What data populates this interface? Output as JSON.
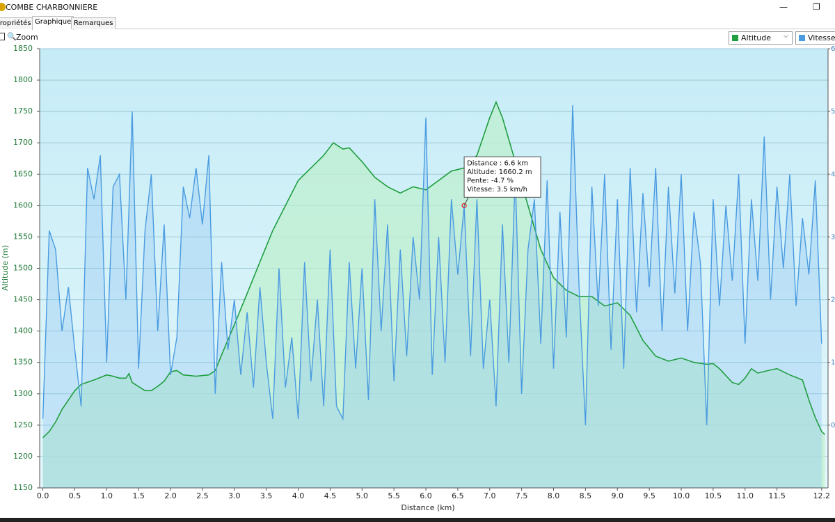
{
  "window": {
    "title": "COMBE  CHARBONNIERE"
  },
  "tabs": [
    "Propriétés",
    "Graphique",
    "Remarques"
  ],
  "toolbar": {
    "zoom": "Zoom"
  },
  "chart_data": {
    "type": "line",
    "xlabel": "Distance   (km)",
    "ylabel": "Altitude (m)",
    "xlim": [
      -0.05,
      12.3
    ],
    "ylim": [
      1150,
      1850
    ],
    "y2lim": [
      -1,
      6
    ],
    "grid": true,
    "xticks": [
      {
        "value": 0,
        "label": "0.0"
      },
      0.5,
      {
        "value": 1,
        "label": "1.0"
      },
      1.5,
      {
        "value": 2,
        "label": "2.0"
      },
      2.5,
      {
        "value": 3,
        "label": "3.0"
      },
      3.5,
      {
        "value": 4,
        "label": "4.0"
      },
      4.5,
      {
        "value": 5,
        "label": "5.0"
      },
      5.5,
      {
        "value": 6,
        "label": "6.0"
      },
      6.5,
      {
        "value": 7,
        "label": "7.0"
      },
      7.5,
      {
        "value": 8,
        "label": "8.0"
      },
      8.5,
      {
        "value": 9,
        "label": "9.0"
      },
      9.5,
      {
        "value": 10,
        "label": "10.0"
      },
      10.5,
      {
        "value": 11,
        "label": "11.0"
      },
      11.5,
      12.2
    ],
    "yticks": [
      1150,
      1200,
      1250,
      1300,
      1350,
      1400,
      1450,
      1500,
      1550,
      1600,
      1650,
      1700,
      1750,
      1800,
      1850
    ],
    "y2ticks": [
      0,
      1,
      2,
      3,
      4,
      5,
      6
    ],
    "series": [
      {
        "name": "Altitude",
        "color": "#1f9e3f",
        "x": [
          0,
          0.1,
          0.2,
          0.3,
          0.4,
          0.5,
          0.6,
          0.8,
          1.0,
          1.1,
          1.2,
          1.3,
          1.35,
          1.4,
          1.6,
          1.7,
          1.8,
          1.9,
          2.0,
          2.1,
          2.2,
          2.4,
          2.6,
          2.7,
          2.8,
          3.0,
          3.2,
          3.4,
          3.6,
          3.8,
          4.0,
          4.2,
          4.4,
          4.55,
          4.7,
          4.8,
          5.0,
          5.2,
          5.4,
          5.6,
          5.8,
          6.0,
          6.2,
          6.4,
          6.6,
          6.8,
          7.0,
          7.1,
          7.2,
          7.4,
          7.6,
          7.8,
          8.0,
          8.2,
          8.4,
          8.6,
          8.8,
          9.0,
          9.2,
          9.4,
          9.6,
          9.8,
          10.0,
          10.2,
          10.4,
          10.5,
          10.6,
          10.8,
          10.9,
          11.0,
          11.1,
          11.2,
          11.4,
          11.5,
          11.7,
          11.9,
          12.0,
          12.1,
          12.2,
          12.25
        ],
        "values": [
          1230,
          1240,
          1255,
          1275,
          1290,
          1305,
          1315,
          1322,
          1330,
          1328,
          1325,
          1325,
          1332,
          1318,
          1305,
          1305,
          1312,
          1320,
          1335,
          1337,
          1330,
          1328,
          1330,
          1337,
          1362,
          1410,
          1460,
          1510,
          1560,
          1600,
          1640,
          1660,
          1680,
          1700,
          1690,
          1692,
          1670,
          1645,
          1630,
          1620,
          1630,
          1625,
          1640,
          1655,
          1660,
          1680,
          1740,
          1765,
          1740,
          1670,
          1600,
          1530,
          1485,
          1465,
          1455,
          1455,
          1440,
          1445,
          1425,
          1385,
          1360,
          1352,
          1357,
          1350,
          1347,
          1348,
          1340,
          1318,
          1315,
          1325,
          1340,
          1333,
          1338,
          1340,
          1330,
          1322,
          1290,
          1262,
          1240,
          1235
        ]
      },
      {
        "name": "Vitesse",
        "color": "#4a9be0",
        "axis": "y2",
        "x": [
          0,
          0.1,
          0.2,
          0.3,
          0.4,
          0.5,
          0.6,
          0.7,
          0.8,
          0.9,
          1.0,
          1.1,
          1.2,
          1.3,
          1.4,
          1.5,
          1.6,
          1.7,
          1.8,
          1.9,
          2.0,
          2.1,
          2.2,
          2.3,
          2.4,
          2.5,
          2.6,
          2.7,
          2.8,
          2.9,
          3.0,
          3.1,
          3.2,
          3.3,
          3.4,
          3.5,
          3.6,
          3.7,
          3.8,
          3.9,
          4.0,
          4.1,
          4.2,
          4.3,
          4.4,
          4.5,
          4.6,
          4.7,
          4.8,
          4.9,
          5.0,
          5.1,
          5.2,
          5.3,
          5.4,
          5.5,
          5.6,
          5.7,
          5.8,
          5.9,
          6.0,
          6.1,
          6.2,
          6.3,
          6.4,
          6.5,
          6.6,
          6.7,
          6.8,
          6.9,
          7.0,
          7.1,
          7.2,
          7.3,
          7.4,
          7.5,
          7.6,
          7.7,
          7.8,
          7.9,
          8.0,
          8.1,
          8.2,
          8.3,
          8.4,
          8.5,
          8.6,
          8.7,
          8.8,
          8.9,
          9.0,
          9.1,
          9.2,
          9.3,
          9.4,
          9.5,
          9.6,
          9.7,
          9.8,
          9.9,
          10.0,
          10.1,
          10.2,
          10.3,
          10.4,
          10.5,
          10.6,
          10.7,
          10.8,
          10.9,
          11.0,
          11.1,
          11.2,
          11.3,
          11.4,
          11.5,
          11.6,
          11.7,
          11.8,
          11.9,
          12.0,
          12.1,
          12.2
        ],
        "values": [
          0.1,
          3.1,
          2.8,
          1.5,
          2.2,
          1.2,
          0.3,
          4.1,
          3.6,
          4.3,
          1.0,
          3.8,
          4.0,
          2.0,
          5.0,
          0.9,
          3.1,
          4.0,
          1.5,
          3.2,
          0.8,
          1.4,
          3.8,
          3.3,
          4.1,
          3.2,
          4.3,
          0.5,
          2.6,
          1.2,
          2.0,
          0.8,
          1.8,
          0.6,
          2.2,
          1.0,
          0.1,
          2.5,
          0.6,
          1.4,
          0.1,
          2.6,
          0.7,
          2.0,
          0.3,
          2.8,
          0.3,
          0.1,
          2.6,
          0.9,
          2.5,
          0.4,
          3.6,
          1.5,
          3.2,
          0.7,
          2.8,
          1.1,
          3.0,
          2.0,
          4.9,
          0.8,
          3.0,
          1.0,
          3.6,
          2.4,
          3.5,
          1.1,
          3.6,
          0.9,
          2.0,
          0.3,
          3.2,
          1.0,
          4.0,
          0.5,
          2.8,
          3.6,
          1.3,
          3.9,
          0.9,
          3.4,
          1.4,
          5.1,
          2.2,
          0.0,
          3.8,
          1.9,
          4.0,
          1.2,
          3.6,
          0.9,
          4.1,
          1.8,
          3.7,
          2.2,
          4.1,
          1.5,
          3.8,
          2.1,
          4.0,
          1.5,
          3.4,
          2.6,
          0.0,
          3.6,
          1.9,
          3.5,
          2.3,
          4.0,
          1.3,
          3.6,
          2.3,
          4.6,
          2.0,
          3.8,
          2.5,
          4.0,
          1.9,
          3.3,
          2.4,
          3.9,
          1.3
        ]
      }
    ],
    "tooltip": {
      "lines": [
        "Distance  : 6.6 km",
        "Altitude: 1660.2 m",
        "Pente: -4.7 %",
        "Vitesse: 3.5 km/h"
      ],
      "x": 6.6,
      "value": 3.5
    }
  }
}
